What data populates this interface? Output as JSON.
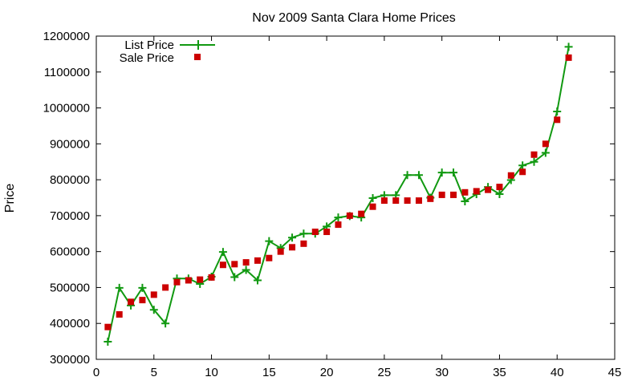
{
  "chart_data": {
    "type": "line",
    "title": "Nov 2009 Santa Clara Home Prices",
    "xlabel": "",
    "ylabel": "Price",
    "xlim": [
      0,
      45
    ],
    "ylim": [
      300000,
      1200000
    ],
    "xticks": [
      0,
      5,
      10,
      15,
      20,
      25,
      30,
      35,
      40,
      45
    ],
    "yticks": [
      300000,
      400000,
      500000,
      600000,
      700000,
      800000,
      900000,
      1000000,
      1100000,
      1200000
    ],
    "xtick_labels": [
      "0",
      "5",
      "10",
      "15",
      "20",
      "25",
      "30",
      "35",
      "40",
      "45"
    ],
    "ytick_labels": [
      "300000",
      "400000",
      "500000",
      "600000",
      "700000",
      "800000",
      "900000",
      "1000000",
      "1100000",
      "1200000"
    ],
    "grid": false,
    "legend_position": "top-left",
    "series": [
      {
        "name": "List Price",
        "style": "line-with-plus-markers",
        "color": "#119911",
        "x": [
          1,
          2,
          3,
          4,
          5,
          6,
          7,
          8,
          9,
          10,
          11,
          12,
          13,
          14,
          15,
          16,
          17,
          18,
          19,
          20,
          21,
          22,
          23,
          24,
          25,
          26,
          27,
          28,
          29,
          30,
          31,
          32,
          33,
          34,
          35,
          36,
          37,
          38,
          39,
          40,
          41
        ],
        "y": [
          349000,
          499000,
          450000,
          499000,
          438000,
          400000,
          525000,
          525000,
          510000,
          530000,
          599000,
          529000,
          549000,
          520000,
          629000,
          610000,
          639000,
          650000,
          650000,
          670000,
          695000,
          699000,
          695000,
          749000,
          757000,
          757000,
          813000,
          813000,
          750000,
          820000,
          820000,
          740000,
          760000,
          780000,
          760000,
          799000,
          840000,
          850000,
          875000,
          990000,
          1170000
        ]
      },
      {
        "name": "Sale Price",
        "style": "square-markers",
        "color": "#cc0000",
        "x": [
          1,
          2,
          3,
          4,
          5,
          6,
          7,
          8,
          9,
          10,
          11,
          12,
          13,
          14,
          15,
          16,
          17,
          18,
          19,
          20,
          21,
          22,
          23,
          24,
          25,
          26,
          27,
          28,
          29,
          30,
          31,
          32,
          33,
          34,
          35,
          36,
          37,
          38,
          39,
          40,
          41
        ],
        "y": [
          390000,
          425000,
          460000,
          465000,
          480000,
          500000,
          515000,
          520000,
          522000,
          528000,
          563000,
          565000,
          570000,
          575000,
          582000,
          600000,
          612000,
          622000,
          655000,
          655000,
          675000,
          700000,
          705000,
          725000,
          742000,
          742000,
          742000,
          742000,
          747000,
          758000,
          758000,
          765000,
          768000,
          772000,
          780000,
          812000,
          822000,
          870000,
          900000,
          967000,
          1140000
        ]
      }
    ]
  }
}
